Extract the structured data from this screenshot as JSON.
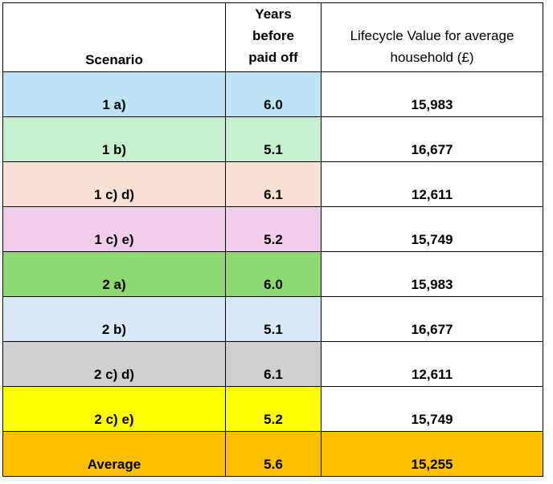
{
  "table": {
    "headers": {
      "scenario": "Scenario",
      "years_before_paid_off": [
        "Years",
        "before",
        "paid off"
      ],
      "lifecycle_value": [
        "Lifecycle Value for average",
        "household (£)"
      ]
    },
    "rows": [
      {
        "scenario": "1 a)",
        "years": "6.0",
        "value": "15,983",
        "color": "#bde3f4"
      },
      {
        "scenario": "1 b)",
        "years": "5.1",
        "value": "16,677",
        "color": "#c6efcf"
      },
      {
        "scenario": "1 c) d)",
        "years": "6.1",
        "value": "12,611",
        "color": "#fbe0d6"
      },
      {
        "scenario": "1 c) e)",
        "years": "5.2",
        "value": "15,749",
        "color": "#f1cdec"
      },
      {
        "scenario": "2 a)",
        "years": "6.0",
        "value": "15,983",
        "color": "#8ed872"
      },
      {
        "scenario": "2 b)",
        "years": "5.1",
        "value": "16,677",
        "color": "#dae8f6"
      },
      {
        "scenario": "2 c) d)",
        "years": "6.1",
        "value": "12,611",
        "color": "#d0d0d0"
      },
      {
        "scenario": "2 c) e)",
        "years": "5.2",
        "value": "15,749",
        "color": "#ffff00"
      },
      {
        "scenario": "Average",
        "years": "5.6",
        "value": "15,255",
        "color": "#ffbf00",
        "value_color": "#ffbf00"
      }
    ]
  }
}
